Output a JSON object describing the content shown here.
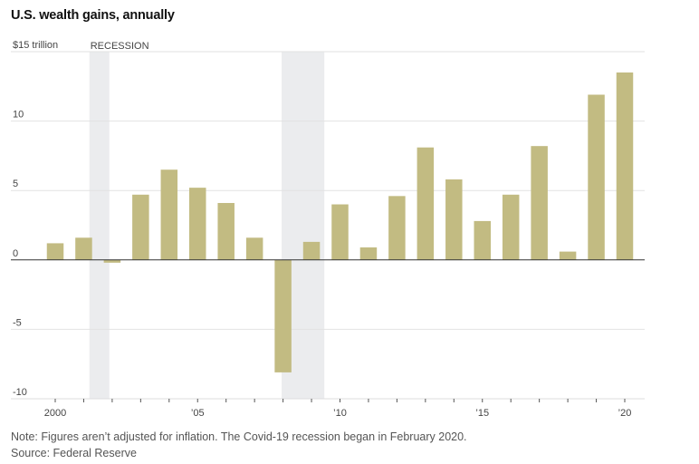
{
  "title": "U.S. wealth gains, annually",
  "note": "Note: Figures aren’t adjusted for inflation. The Covid-19 recession began in February 2020.",
  "source": "Source: Federal Reserve",
  "chart_data": {
    "type": "bar",
    "title": "U.S. wealth gains, annually",
    "xlabel": "",
    "ylabel": "",
    "ylim": [
      -10,
      15
    ],
    "xlim": [
      2000,
      2020
    ],
    "grid": true,
    "y_ticks": [
      {
        "value": 15,
        "label": "$15 trillion"
      },
      {
        "value": 10,
        "label": "10"
      },
      {
        "value": 5,
        "label": "5"
      },
      {
        "value": 0,
        "label": "0"
      },
      {
        "value": -5,
        "label": "-5"
      },
      {
        "value": -10,
        "label": "-10"
      }
    ],
    "x_ticks": [
      {
        "value": 2000,
        "label": "2000"
      },
      {
        "value": 2005,
        "label": "’05"
      },
      {
        "value": 2010,
        "label": "’10"
      },
      {
        "value": 2015,
        "label": "’15"
      },
      {
        "value": 2020,
        "label": "’20"
      }
    ],
    "recession_label": "RECESSION",
    "recessions": [
      {
        "start": 2001.2,
        "end": 2001.9
      },
      {
        "start": 2007.95,
        "end": 2009.45
      }
    ],
    "bar_color": "#c2bb82",
    "recession_color": "#ebecee",
    "categories": [
      2000,
      2001,
      2002,
      2003,
      2004,
      2005,
      2006,
      2007,
      2008,
      2009,
      2010,
      2011,
      2012,
      2013,
      2014,
      2015,
      2016,
      2017,
      2018,
      2019,
      2020
    ],
    "values": [
      1.2,
      1.6,
      -0.2,
      4.7,
      6.5,
      5.2,
      4.1,
      1.6,
      -8.1,
      1.3,
      4.0,
      0.9,
      4.6,
      8.1,
      5.8,
      2.8,
      4.7,
      8.2,
      0.6,
      11.9,
      13.5
    ]
  }
}
